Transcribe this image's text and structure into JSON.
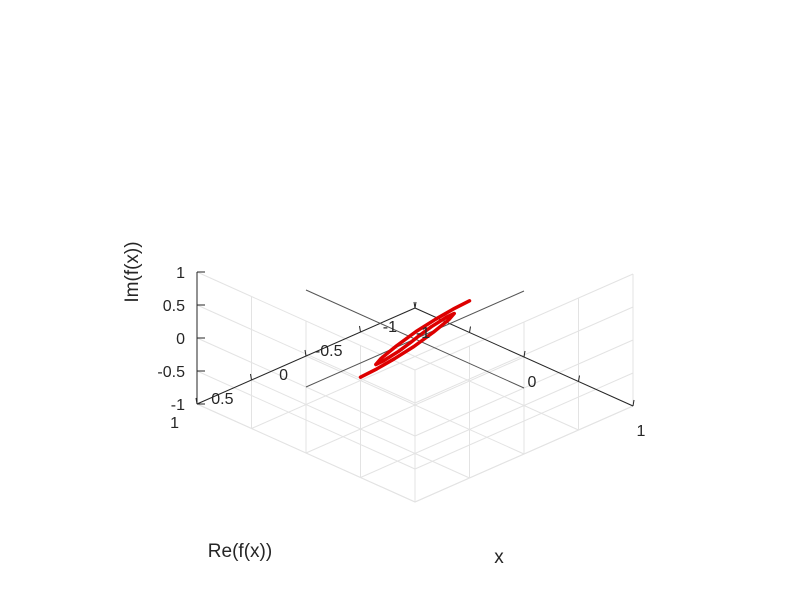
{
  "chart_data": {
    "type": "line3d",
    "title": "",
    "xlabel": "x",
    "ylabel": "Re(f(x))",
    "zlabel": "Im(f(x))",
    "xlim": [
      -1,
      1
    ],
    "ylim": [
      -1,
      1
    ],
    "zlim": [
      -1,
      1
    ],
    "x_ticks": [
      "-1",
      "0",
      "1"
    ],
    "y_ticks": [
      "-1",
      "-0.5",
      "0",
      "0.5",
      "1"
    ],
    "z_ticks": [
      "-1",
      "-0.5",
      "0",
      "0.5",
      "1"
    ],
    "grid": true,
    "colors": {
      "curve": "#dd0000",
      "grid": "#e3e3e3",
      "axis": "#262626",
      "origin_lines": "#555555"
    },
    "series": [
      {
        "x": [
          -0.5,
          -0.45,
          -0.4,
          -0.35,
          -0.3,
          -0.25,
          -0.2,
          -0.15,
          -0.1,
          -0.05,
          0,
          0.05,
          0.1,
          0.15,
          0.2,
          0.25,
          0.3,
          0.35,
          0.4,
          0.45,
          0.5
        ],
        "re": [
          0,
          -0.1,
          -0.21,
          -0.34,
          -0.47,
          -0.56,
          -0.56,
          -0.44,
          -0.25,
          -0.09,
          0,
          0.09,
          0.25,
          0.44,
          0.56,
          0.56,
          0.47,
          0.34,
          0.21,
          0.1,
          0
        ],
        "im": [
          -0.95,
          -0.86,
          -0.75,
          -0.62,
          -0.46,
          -0.3,
          -0.17,
          -0.1,
          -0.07,
          -0.05,
          0,
          0.05,
          0.07,
          0.1,
          0.17,
          0.3,
          0.46,
          0.62,
          0.75,
          0.86,
          0.95
        ]
      }
    ]
  }
}
